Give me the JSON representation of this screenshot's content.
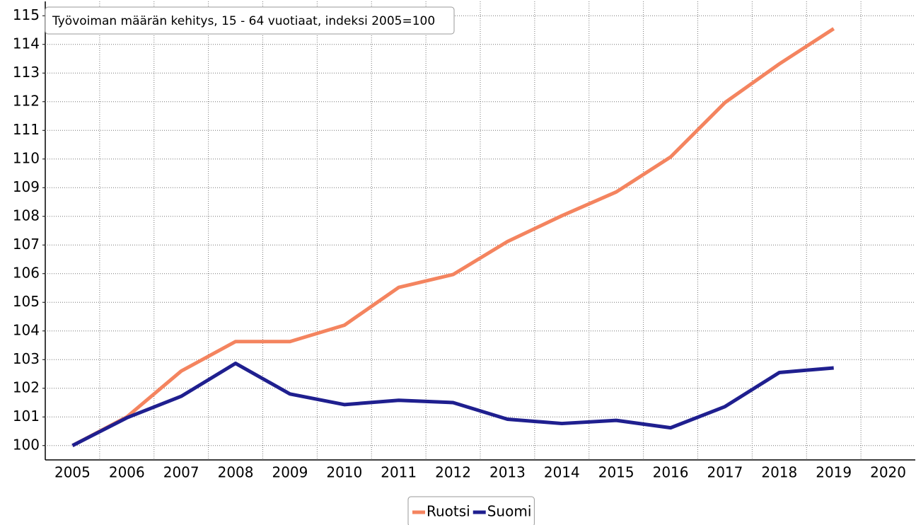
{
  "chart_data": {
    "type": "line",
    "title": "Työvoiman määrän kehitys, 15 - 64 vuotiaat, indeksi 2005=100",
    "categories": [
      "2005",
      "2006",
      "2007",
      "2008",
      "2009",
      "2010",
      "2011",
      "2012",
      "2013",
      "2014",
      "2015",
      "2016",
      "2017",
      "2018",
      "2019",
      "2020"
    ],
    "series": [
      {
        "name": "Ruotsi",
        "color": "#f4845f",
        "values": [
          100,
          101.0,
          102.6,
          103.63,
          103.63,
          104.2,
          105.52,
          105.97,
          107.12,
          108.02,
          108.85,
          110.07,
          111.97,
          113.32,
          114.55,
          null
        ]
      },
      {
        "name": "Suomi",
        "color": "#1f1f8f",
        "values": [
          100,
          100.97,
          101.72,
          102.87,
          101.8,
          101.43,
          101.58,
          101.5,
          100.92,
          100.77,
          100.88,
          100.62,
          101.36,
          102.55,
          102.71,
          null
        ]
      }
    ],
    "ylim": [
      99.5,
      115.5
    ],
    "yticks": [
      100,
      101,
      102,
      103,
      104,
      105,
      106,
      107,
      108,
      109,
      110,
      111,
      112,
      113,
      114,
      115
    ],
    "grid": true,
    "legend": "bottom"
  }
}
